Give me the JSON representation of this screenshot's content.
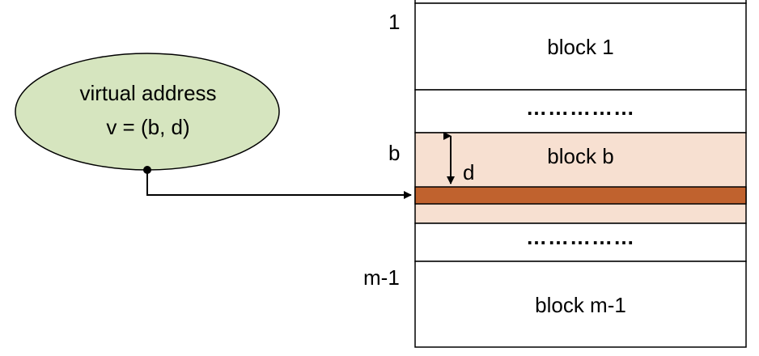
{
  "address": {
    "line1": "virtual address",
    "line2": "v = (b, d)"
  },
  "row_labels": {
    "first": "1",
    "b": "b",
    "last": "m-1"
  },
  "blocks": {
    "block1": "block 1",
    "dots_upper": "……………",
    "block_b": "block b",
    "offset": "d",
    "dots_lower": "……………",
    "block_last": "block m-1"
  },
  "colors": {
    "ellipse_fill": "#d6e5bf",
    "block_b_fill": "#f7e0d1",
    "target_fill": "#c0622e",
    "stroke": "#000000"
  }
}
